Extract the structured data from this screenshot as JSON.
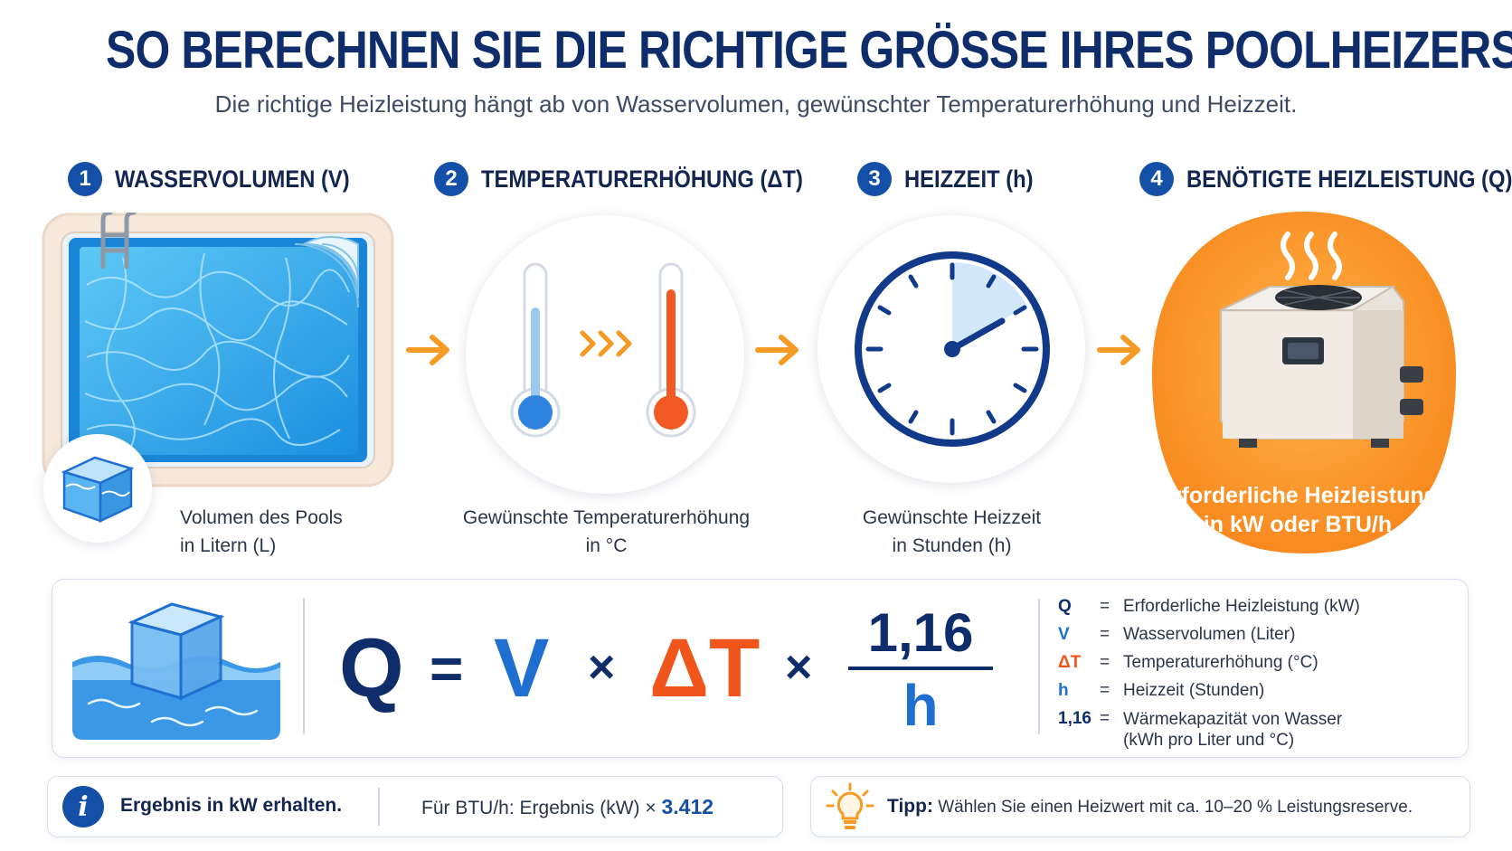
{
  "title": "SO BERECHNEN SIE DIE RICHTIGE GRÖSSE IHRES POOLHEIZERS",
  "subtitle": "Die richtige Heizleistung hängt ab von Wasservolumen, gewünschter Temperaturerhöhung und Heizzeit.",
  "steps": [
    {
      "num": "1",
      "title": "WASSERVOLUMEN (V)",
      "caption_line1": "Volumen des Pools",
      "caption_line2": "in Litern (L)"
    },
    {
      "num": "2",
      "title": "TEMPERATURERHÖHUNG (ΔT)",
      "caption_line1": "Gewünschte Temperaturerhöhung",
      "caption_line2": "in °C"
    },
    {
      "num": "3",
      "title": "HEIZZEIT (h)",
      "caption_line1": "Gewünschte Heizzeit",
      "caption_line2": "in Stunden (h)"
    },
    {
      "num": "4",
      "title": "BENÖTIGTE HEIZLEISTUNG (Q)",
      "caption_line1": "Erforderliche Heizleistung",
      "caption_line2": "in kW oder BTU/h"
    }
  ],
  "formula": {
    "q": "Q",
    "eq": "=",
    "v": "V",
    "times1": "×",
    "dt": "ΔT",
    "times2": "×",
    "numerator": "1,16",
    "denominator": "h"
  },
  "legend": [
    {
      "sym": "Q",
      "eq": "=",
      "text": "Erforderliche Heizleistung (kW)"
    },
    {
      "sym": "V",
      "eq": "=",
      "text": "Wasservolumen (Liter)"
    },
    {
      "sym": "ΔT",
      "eq": "=",
      "text": "Temperaturerhöhung (°C)"
    },
    {
      "sym": "h",
      "eq": "=",
      "text": "Heizzeit (Stunden)"
    },
    {
      "sym": "1,16",
      "eq": "=",
      "text": "Wärmekapazität von Wasser",
      "text2": "(kWh pro Liter und °C)"
    }
  ],
  "info": {
    "icon_letter": "i",
    "result_label": "Ergebnis in kW erhalten.",
    "btu_prefix": "Für BTU/h: Ergebnis (kW) ×",
    "btu_factor": "3.412"
  },
  "tip": {
    "label": "Tipp:",
    "text": "Wählen Sie einen Heizwert mit ca. 10–20 % Leistungsreserve."
  },
  "icons": [
    "pool-icon",
    "water-cube-icon",
    "thermometer-cold-icon",
    "thermometer-hot-icon",
    "clock-icon",
    "heat-pump-icon",
    "info-icon",
    "lightbulb-icon"
  ],
  "colors": {
    "navy": "#0f2d6b",
    "blue": "#1e6fd0",
    "orange": "#f0561b",
    "accent_orange": "#f59a23",
    "badge": "#1450a8"
  }
}
